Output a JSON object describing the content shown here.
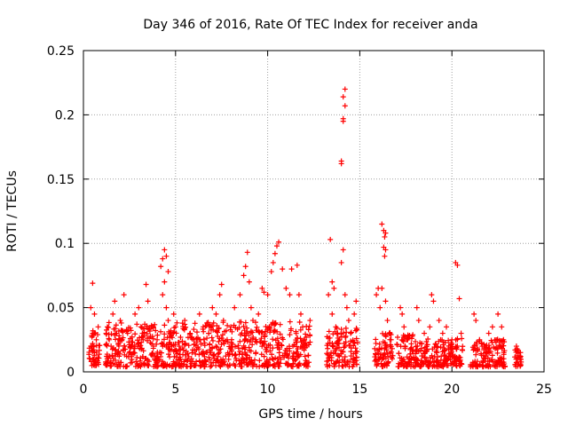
{
  "chart_data": {
    "type": "scatter",
    "title": "Day 346 of 2016, Rate Of TEC Index for receiver anda",
    "xlabel": "GPS time / hours",
    "ylabel": "ROTI / TECUs",
    "xlim": [
      0,
      25
    ],
    "ylim": [
      0,
      0.25
    ],
    "grid": true,
    "marker": "+",
    "colors": {
      "points": "#ff0000",
      "grid": "#a0a0a0",
      "axis": "#000000"
    },
    "x_ticks": [
      0,
      5,
      10,
      15,
      20,
      25
    ],
    "x_tick_labels": [
      "0",
      "5",
      "10",
      "15",
      "20",
      "25"
    ],
    "y_ticks": [
      0,
      0.05,
      0.1,
      0.15,
      0.2,
      0.25
    ],
    "y_tick_labels": [
      "0",
      "0.05",
      "0.1",
      "0.15",
      "0.2",
      "0.25"
    ],
    "series": [
      {
        "name": "ROTI",
        "points": [
          [
            0.5,
            0.069
          ],
          [
            0.4,
            0.05
          ],
          [
            0.6,
            0.045
          ],
          [
            0.5,
            0.03
          ],
          [
            0.4,
            0.02
          ],
          [
            0.6,
            0.015
          ],
          [
            0.5,
            0.01
          ],
          [
            0.7,
            0.025
          ],
          [
            0.8,
            0.035
          ],
          [
            1.3,
            0.035
          ],
          [
            1.4,
            0.025
          ],
          [
            1.5,
            0.02
          ],
          [
            1.6,
            0.045
          ],
          [
            1.7,
            0.055
          ],
          [
            1.8,
            0.03
          ],
          [
            1.9,
            0.015
          ],
          [
            2.0,
            0.04
          ],
          [
            2.1,
            0.025
          ],
          [
            2.2,
            0.06
          ],
          [
            2.4,
            0.03
          ],
          [
            2.6,
            0.02
          ],
          [
            2.8,
            0.045
          ],
          [
            3.0,
            0.05
          ],
          [
            3.2,
            0.03
          ],
          [
            3.4,
            0.068
          ],
          [
            3.5,
            0.055
          ],
          [
            3.7,
            0.035
          ],
          [
            3.8,
            0.02
          ],
          [
            4.0,
            0.025
          ],
          [
            4.2,
            0.082
          ],
          [
            4.3,
            0.088
          ],
          [
            4.4,
            0.095
          ],
          [
            4.5,
            0.09
          ],
          [
            4.6,
            0.078
          ],
          [
            4.4,
            0.07
          ],
          [
            4.3,
            0.06
          ],
          [
            4.5,
            0.05
          ],
          [
            4.6,
            0.04
          ],
          [
            4.7,
            0.03
          ],
          [
            4.8,
            0.02
          ],
          [
            4.9,
            0.045
          ],
          [
            5.0,
            0.035
          ],
          [
            5.2,
            0.02
          ],
          [
            5.5,
            0.04
          ],
          [
            5.8,
            0.03
          ],
          [
            6.0,
            0.025
          ],
          [
            6.3,
            0.045
          ],
          [
            6.5,
            0.035
          ],
          [
            6.8,
            0.03
          ],
          [
            7.0,
            0.05
          ],
          [
            7.2,
            0.045
          ],
          [
            7.4,
            0.06
          ],
          [
            7.5,
            0.068
          ],
          [
            7.6,
            0.04
          ],
          [
            7.8,
            0.025
          ],
          [
            8.0,
            0.035
          ],
          [
            8.2,
            0.05
          ],
          [
            8.5,
            0.06
          ],
          [
            8.7,
            0.075
          ],
          [
            8.8,
            0.082
          ],
          [
            8.9,
            0.093
          ],
          [
            9.0,
            0.07
          ],
          [
            9.1,
            0.05
          ],
          [
            9.2,
            0.04
          ],
          [
            9.5,
            0.045
          ],
          [
            9.7,
            0.065
          ],
          [
            9.8,
            0.062
          ],
          [
            10.0,
            0.06
          ],
          [
            10.2,
            0.078
          ],
          [
            10.3,
            0.085
          ],
          [
            10.4,
            0.092
          ],
          [
            10.5,
            0.098
          ],
          [
            10.6,
            0.101
          ],
          [
            10.8,
            0.08
          ],
          [
            11.0,
            0.065
          ],
          [
            11.2,
            0.06
          ],
          [
            11.3,
            0.08
          ],
          [
            11.6,
            0.083
          ],
          [
            11.7,
            0.06
          ],
          [
            11.8,
            0.045
          ],
          [
            11.9,
            0.035
          ],
          [
            12.0,
            0.025
          ],
          [
            12.3,
            0.04
          ],
          [
            13.4,
            0.103
          ],
          [
            13.5,
            0.07
          ],
          [
            13.6,
            0.065
          ],
          [
            13.3,
            0.06
          ],
          [
            13.5,
            0.045
          ],
          [
            13.7,
            0.035
          ],
          [
            13.9,
            0.025
          ],
          [
            14.0,
            0.164
          ],
          [
            14.0,
            0.162
          ],
          [
            14.1,
            0.195
          ],
          [
            14.1,
            0.197
          ],
          [
            14.2,
            0.207
          ],
          [
            14.1,
            0.214
          ],
          [
            14.2,
            0.22
          ],
          [
            14.0,
            0.085
          ],
          [
            14.1,
            0.095
          ],
          [
            14.2,
            0.06
          ],
          [
            14.3,
            0.05
          ],
          [
            14.4,
            0.04
          ],
          [
            14.5,
            0.03
          ],
          [
            14.7,
            0.045
          ],
          [
            14.8,
            0.055
          ],
          [
            15.9,
            0.06
          ],
          [
            16.0,
            0.065
          ],
          [
            16.1,
            0.05
          ],
          [
            16.2,
            0.115
          ],
          [
            16.3,
            0.11
          ],
          [
            16.35,
            0.105
          ],
          [
            16.4,
            0.108
          ],
          [
            16.3,
            0.097
          ],
          [
            16.4,
            0.095
          ],
          [
            16.35,
            0.09
          ],
          [
            16.2,
            0.065
          ],
          [
            16.4,
            0.055
          ],
          [
            16.5,
            0.04
          ],
          [
            16.6,
            0.03
          ],
          [
            16.7,
            0.025
          ],
          [
            17.2,
            0.05
          ],
          [
            17.3,
            0.045
          ],
          [
            17.4,
            0.035
          ],
          [
            17.6,
            0.025
          ],
          [
            18.1,
            0.05
          ],
          [
            18.2,
            0.04
          ],
          [
            18.5,
            0.03
          ],
          [
            18.8,
            0.035
          ],
          [
            18.9,
            0.06
          ],
          [
            19.0,
            0.055
          ],
          [
            19.3,
            0.04
          ],
          [
            19.5,
            0.03
          ],
          [
            19.7,
            0.035
          ],
          [
            20.0,
            0.025
          ],
          [
            20.2,
            0.085
          ],
          [
            20.3,
            0.083
          ],
          [
            20.4,
            0.057
          ],
          [
            20.5,
            0.03
          ],
          [
            21.2,
            0.045
          ],
          [
            21.3,
            0.04
          ],
          [
            21.5,
            0.025
          ],
          [
            21.8,
            0.02
          ],
          [
            22.0,
            0.03
          ],
          [
            22.2,
            0.035
          ],
          [
            22.5,
            0.045
          ],
          [
            22.7,
            0.035
          ],
          [
            22.8,
            0.025
          ],
          [
            23.5,
            0.02
          ],
          [
            23.6,
            0.015
          ],
          [
            23.7,
            0.012
          ]
        ]
      }
    ]
  }
}
